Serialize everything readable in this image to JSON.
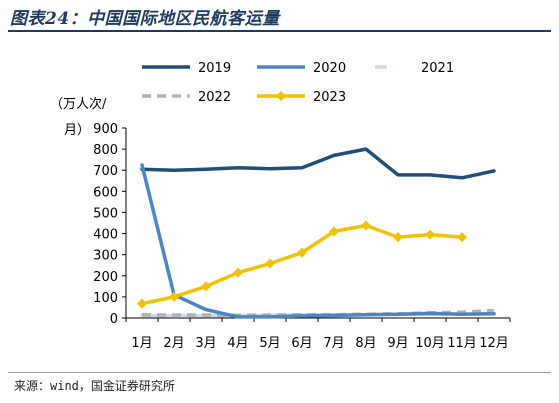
{
  "figure_title": "图表24：中国国际地区民航客运量",
  "source_text": "来源：wind，国金证券研究所",
  "chart_data": {
    "type": "line",
    "ylabel_lines": [
      "（万人次/",
      "月）"
    ],
    "xlabel": "",
    "categories": [
      "1月",
      "2月",
      "3月",
      "4月",
      "5月",
      "6月",
      "7月",
      "8月",
      "9月",
      "10月",
      "11月",
      "12月"
    ],
    "ylim": [
      0,
      900
    ],
    "yticks": [
      0,
      100,
      200,
      300,
      400,
      500,
      600,
      700,
      800,
      900
    ],
    "ytick_labels": [
      "0",
      "100",
      "200",
      "300",
      "400",
      "500",
      "600",
      "700",
      "800",
      "900"
    ],
    "grid": false,
    "legend_position": "top",
    "series": [
      {
        "name": "2019",
        "color": "#1f4e79",
        "style": "solid",
        "marker": "none",
        "values": [
          705,
          700,
          705,
          712,
          707,
          712,
          770,
          800,
          678,
          678,
          664,
          697
        ]
      },
      {
        "name": "2020",
        "color": "#4a86c5",
        "style": "solid",
        "marker": "none",
        "values": [
          725,
          110,
          40,
          5,
          5,
          10,
          12,
          15,
          18,
          22,
          18,
          20
        ]
      },
      {
        "name": "2021",
        "color": "#c9d9ee",
        "style": "solid",
        "marker": "none",
        "values": [
          12,
          10,
          11,
          12,
          13,
          14,
          15,
          16,
          17,
          18,
          19,
          20
        ]
      },
      {
        "name": "2022",
        "color": "#b0b0b0",
        "style": "dashed",
        "marker": "none",
        "values": [
          15,
          14,
          14,
          13,
          14,
          15,
          16,
          18,
          20,
          24,
          28,
          35
        ]
      },
      {
        "name": "2023",
        "color": "#f2c200",
        "style": "solid",
        "marker": "diamond",
        "values": [
          68,
          100,
          150,
          215,
          258,
          310,
          410,
          438,
          383,
          395,
          383,
          null
        ]
      }
    ]
  }
}
